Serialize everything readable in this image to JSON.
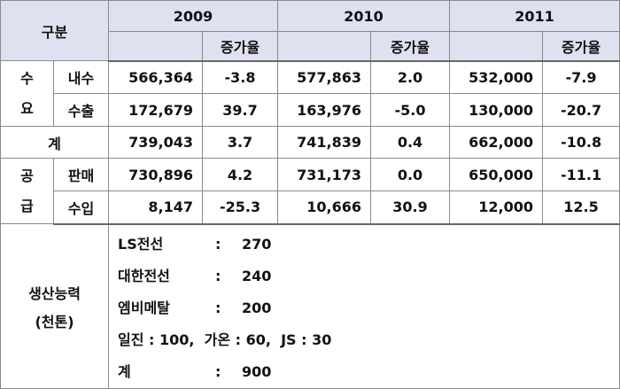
{
  "header": {
    "category": "구분",
    "years": [
      "2009",
      "2010",
      "2011"
    ],
    "rate_label": "증가율"
  },
  "demand": {
    "group": "수요",
    "rows": [
      {
        "name": "내수",
        "cells": [
          "566,364",
          "-3.8",
          "577,863",
          "2.0",
          "532,000",
          "-7.9"
        ]
      },
      {
        "name": "수출",
        "cells": [
          "172,679",
          "39.7",
          "163,976",
          "-5.0",
          "130,000",
          "-20.7"
        ]
      }
    ]
  },
  "total": {
    "name": "계",
    "cells": [
      "739,043",
      "3.7",
      "741,839",
      "0.4",
      "662,000",
      "-10.8"
    ]
  },
  "supply": {
    "group": "공급",
    "rows": [
      {
        "name": "판매",
        "cells": [
          "730,896",
          "4.2",
          "731,173",
          "0.0",
          "650,000",
          "-11.1"
        ]
      },
      {
        "name": "수입",
        "cells": [
          "8,147",
          "-25.3",
          "10,666",
          "30.9",
          "12,000",
          "12.5"
        ]
      }
    ]
  },
  "capacity": {
    "label": "생산능력",
    "unit": "(천톤)",
    "lines": [
      [
        "LS전선",
        ":",
        "270"
      ],
      [
        "대한전선",
        ":",
        "240"
      ],
      [
        "엠비메탈",
        ":",
        "200"
      ],
      [
        "일진 : 100,  가온 : 60,  JS : 30"
      ],
      [
        "계",
        ":",
        "900"
      ]
    ]
  }
}
